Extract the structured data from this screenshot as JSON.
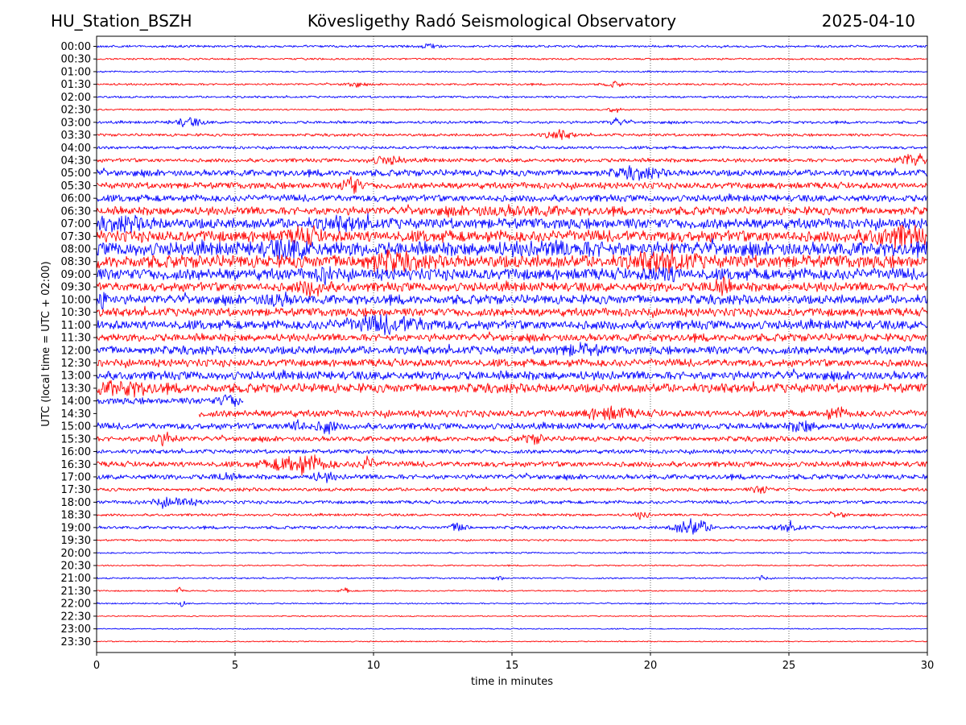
{
  "header": {
    "station": "HU_Station_BSZH",
    "observatory": "Kövesligethy Radó Seismological Observatory",
    "date": "2025-04-10"
  },
  "chart_data": {
    "type": "line",
    "subtype": "helicorder",
    "xlabel": "time in minutes",
    "ylabel": "UTC (local time = UTC + 02:00)",
    "xlim": [
      0,
      30
    ],
    "x_ticks": [
      "0",
      "5",
      "10",
      "15",
      "20",
      "25",
      "30"
    ],
    "vertical_gridlines_at_minutes": [
      5,
      10,
      15,
      20,
      25
    ],
    "grid": "vertical dotted",
    "trace_colors": [
      "#0000ff",
      "#ff0000"
    ],
    "rows": [
      {
        "label": "00:00",
        "amplitude": 0.1,
        "bursts": [
          [
            12.0,
            0.3,
            0.2
          ]
        ]
      },
      {
        "label": "00:30",
        "amplitude": 0.08,
        "bursts": []
      },
      {
        "label": "01:00",
        "amplitude": 0.07,
        "bursts": []
      },
      {
        "label": "01:30",
        "amplitude": 0.09,
        "bursts": [
          [
            9.3,
            0.3,
            0.2
          ],
          [
            18.7,
            0.3,
            0.2
          ]
        ]
      },
      {
        "label": "02:00",
        "amplitude": 0.09,
        "bursts": []
      },
      {
        "label": "02:30",
        "amplitude": 0.07,
        "bursts": [
          [
            18.7,
            0.2,
            0.3
          ]
        ]
      },
      {
        "label": "03:00",
        "amplitude": 0.12,
        "bursts": [
          [
            3.3,
            0.5,
            0.35
          ],
          [
            18.8,
            0.3,
            0.3
          ]
        ]
      },
      {
        "label": "03:30",
        "amplitude": 0.12,
        "bursts": [
          [
            16.7,
            0.5,
            0.35
          ]
        ]
      },
      {
        "label": "04:00",
        "amplitude": 0.13,
        "bursts": []
      },
      {
        "label": "04:30",
        "amplitude": 0.17,
        "bursts": [
          [
            29.5,
            0.6,
            0.5
          ],
          [
            10.5,
            0.6,
            0.3
          ]
        ]
      },
      {
        "label": "05:00",
        "amplitude": 0.28,
        "bursts": [
          [
            19.5,
            0.8,
            0.35
          ]
        ]
      },
      {
        "label": "05:30",
        "amplitude": 0.28,
        "bursts": [
          [
            9.2,
            0.3,
            0.8
          ]
        ]
      },
      {
        "label": "06:00",
        "amplitude": 0.3,
        "bursts": []
      },
      {
        "label": "06:30",
        "amplitude": 0.36,
        "bursts": [
          [
            15.0,
            2.0,
            0.2
          ]
        ]
      },
      {
        "label": "07:00",
        "amplitude": 0.45,
        "bursts": [
          [
            1.0,
            1.0,
            0.3
          ],
          [
            9.0,
            1.0,
            0.3
          ]
        ]
      },
      {
        "label": "07:30",
        "amplitude": 0.5,
        "bursts": [
          [
            7.5,
            0.5,
            0.5
          ],
          [
            29.0,
            1.0,
            0.6
          ]
        ]
      },
      {
        "label": "08:00",
        "amplitude": 0.6,
        "bursts": [
          [
            7.0,
            1.0,
            0.4
          ],
          [
            17.0,
            2.0,
            0.2
          ]
        ]
      },
      {
        "label": "08:30",
        "amplitude": 0.55,
        "bursts": [
          [
            10.5,
            1.0,
            0.5
          ],
          [
            20.5,
            1.0,
            0.6
          ]
        ]
      },
      {
        "label": "09:00",
        "amplitude": 0.5,
        "bursts": [
          [
            8.3,
            0.3,
            0.5
          ],
          [
            20.5,
            0.5,
            0.4
          ]
        ]
      },
      {
        "label": "09:30",
        "amplitude": 0.4,
        "bursts": [
          [
            7.8,
            0.5,
            0.5
          ],
          [
            22.5,
            0.4,
            0.5
          ]
        ]
      },
      {
        "label": "10:00",
        "amplitude": 0.4,
        "bursts": [
          [
            0.2,
            0.3,
            0.6
          ],
          [
            6.5,
            0.5,
            0.4
          ]
        ]
      },
      {
        "label": "10:30",
        "amplitude": 0.36,
        "bursts": []
      },
      {
        "label": "11:00",
        "amplitude": 0.4,
        "bursts": [
          [
            10.5,
            1.5,
            0.5
          ]
        ]
      },
      {
        "label": "11:30",
        "amplitude": 0.33,
        "bursts": []
      },
      {
        "label": "12:00",
        "amplitude": 0.36,
        "bursts": [
          [
            17.5,
            0.8,
            0.3
          ]
        ]
      },
      {
        "label": "12:30",
        "amplitude": 0.33,
        "bursts": []
      },
      {
        "label": "13:00",
        "amplitude": 0.38,
        "bursts": []
      },
      {
        "label": "13:30",
        "amplitude": 0.4,
        "bursts": [
          [
            1.0,
            1.0,
            0.4
          ]
        ]
      },
      {
        "label": "14:00",
        "amplitude": 0.28,
        "start": 0,
        "end": 5.3,
        "bursts": [
          [
            4.8,
            0.4,
            0.4
          ]
        ]
      },
      {
        "label": "14:30",
        "amplitude": 0.3,
        "start": 3.7,
        "end": 30,
        "bursts": [
          [
            18.5,
            0.8,
            0.4
          ],
          [
            26.7,
            0.4,
            0.3
          ]
        ]
      },
      {
        "label": "15:00",
        "amplitude": 0.28,
        "bursts": [
          [
            7.2,
            0.3,
            0.5
          ],
          [
            8.3,
            0.3,
            0.5
          ],
          [
            25.5,
            0.4,
            0.4
          ]
        ]
      },
      {
        "label": "15:30",
        "amplitude": 0.22,
        "bursts": [
          [
            2.4,
            0.5,
            0.4
          ],
          [
            15.8,
            0.4,
            0.3
          ]
        ]
      },
      {
        "label": "16:00",
        "amplitude": 0.18,
        "bursts": []
      },
      {
        "label": "16:30",
        "amplitude": 0.24,
        "bursts": [
          [
            7.3,
            1.0,
            0.7
          ],
          [
            9.8,
            0.3,
            0.5
          ]
        ]
      },
      {
        "label": "17:00",
        "amplitude": 0.22,
        "bursts": [
          [
            4.6,
            0.3,
            0.3
          ],
          [
            8.2,
            0.4,
            0.3
          ]
        ]
      },
      {
        "label": "17:30",
        "amplitude": 0.15,
        "bursts": [
          [
            24.0,
            0.3,
            0.3
          ]
        ]
      },
      {
        "label": "18:00",
        "amplitude": 0.15,
        "bursts": [
          [
            2.8,
            0.8,
            0.35
          ]
        ]
      },
      {
        "label": "18:30",
        "amplitude": 0.11,
        "bursts": [
          [
            19.7,
            0.2,
            0.4
          ],
          [
            26.8,
            0.3,
            0.2
          ]
        ]
      },
      {
        "label": "19:00",
        "amplitude": 0.13,
        "bursts": [
          [
            13.1,
            0.3,
            0.4
          ],
          [
            21.5,
            0.6,
            0.7
          ],
          [
            25.0,
            0.5,
            0.3
          ]
        ]
      },
      {
        "label": "19:30",
        "amplitude": 0.08,
        "bursts": []
      },
      {
        "label": "20:00",
        "amplitude": 0.07,
        "bursts": []
      },
      {
        "label": "20:30",
        "amplitude": 0.06,
        "bursts": []
      },
      {
        "label": "21:00",
        "amplitude": 0.07,
        "bursts": [
          [
            14.5,
            0.2,
            0.2
          ],
          [
            24.0,
            0.2,
            0.2
          ]
        ]
      },
      {
        "label": "21:30",
        "amplitude": 0.06,
        "bursts": [
          [
            3.0,
            0.1,
            0.3
          ],
          [
            9.0,
            0.2,
            0.2
          ]
        ]
      },
      {
        "label": "22:00",
        "amplitude": 0.06,
        "bursts": [
          [
            3.1,
            0.1,
            0.3
          ]
        ]
      },
      {
        "label": "22:30",
        "amplitude": 0.05,
        "bursts": []
      },
      {
        "label": "23:00",
        "amplitude": 0.05,
        "bursts": []
      },
      {
        "label": "23:30",
        "amplitude": 0.05,
        "bursts": []
      }
    ]
  }
}
